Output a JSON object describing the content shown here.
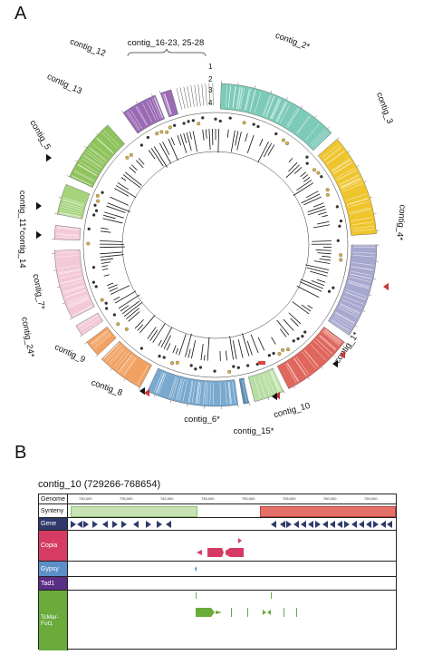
{
  "panelA": {
    "letter": "A",
    "track_numbers": [
      "1",
      "2",
      "3",
      "4"
    ],
    "contig_group_label": "contig_16-23, 25-28",
    "contigs": [
      {
        "label": "contig_2*",
        "color": "#7dcab9"
      },
      {
        "label": "contig_3",
        "color": "#efc52d"
      },
      {
        "label": "contig_4*",
        "color": "#a8a8cf"
      },
      {
        "label": "contig_1*",
        "color": "#e0675d"
      },
      {
        "label": "contig_10",
        "color": "#b7dea3"
      },
      {
        "label": "contig_15*",
        "color": "#5d8fb6"
      },
      {
        "label": "contig_6*",
        "color": "#79a9cf"
      },
      {
        "label": "contig_8",
        "color": "#f1a263"
      },
      {
        "label": "contig_9",
        "color": "#f1a263"
      },
      {
        "label": "contig_24*",
        "color": "#f3c9d8"
      },
      {
        "label": "contig_7*",
        "color": "#f3c9d8"
      },
      {
        "label": "contig_14",
        "color": "#f3c9d8"
      },
      {
        "label": "contig_11*",
        "color": "#a6d47d"
      },
      {
        "label": "contig_5",
        "color": "#8fc35d"
      },
      {
        "label": "contig_13",
        "color": "#9b6ab5"
      },
      {
        "label": "contig_12",
        "color": "#9b6ab5"
      }
    ]
  },
  "panelB": {
    "letter": "B",
    "title": "contig_10 (729266-768654)",
    "rows": [
      {
        "label": "Genome",
        "bg": "#ffffff",
        "dark": false
      },
      {
        "label": "Synteny",
        "bg": "#ffffff",
        "dark": false
      },
      {
        "label": "Gene",
        "bg": "#2f3a6b",
        "dark": true
      },
      {
        "label": "Copia",
        "bg": "#d63c63",
        "dark": true
      },
      {
        "label": "Gypsy",
        "bg": "#5b8fc8",
        "dark": true
      },
      {
        "label": "Tad1",
        "bg": "#5a2d86",
        "dark": true
      },
      {
        "label": "TcMar-Fot1",
        "bg": "#6aab3c",
        "dark": true
      }
    ],
    "genome_ticks": [
      "730,000",
      "735,000",
      "740,000",
      "745,000",
      "750,000",
      "755,000",
      "760,000",
      "765,000"
    ],
    "colors": {
      "synteny_green": "#c8e3b3",
      "synteny_red": "#e4706a",
      "gene": "#2f3a6b",
      "copia": "#d63c63",
      "gypsy": "#3a82d0",
      "tcmar": "#6aab3c"
    }
  }
}
